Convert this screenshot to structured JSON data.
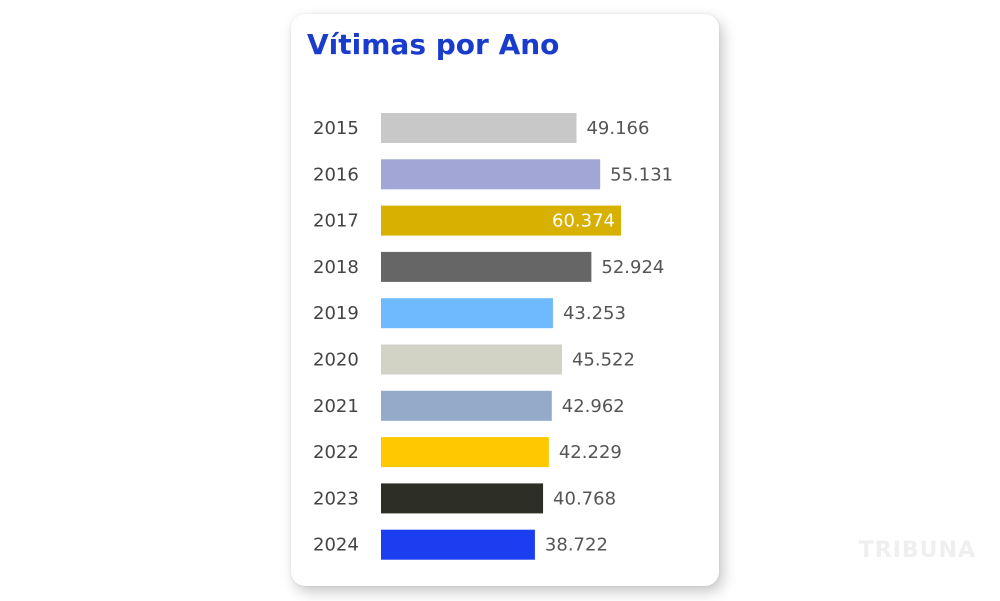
{
  "card": {
    "title": "Vítimas por Ano"
  },
  "watermark": "TRIBUNA",
  "chart_data": {
    "type": "bar",
    "orientation": "horizontal",
    "title": "Vítimas por Ano",
    "xlabel": "",
    "ylabel": "",
    "grid": false,
    "xlim": [
      0,
      60374
    ],
    "categories": [
      "2015",
      "2016",
      "2017",
      "2018",
      "2019",
      "2020",
      "2021",
      "2022",
      "2023",
      "2024"
    ],
    "values": [
      49166,
      55131,
      60374,
      52924,
      43253,
      45522,
      42962,
      42229,
      40768,
      38722
    ],
    "value_labels": [
      "49.166",
      "55.131",
      "60.374",
      "52.924",
      "43.253",
      "45.522",
      "42.962",
      "42.229",
      "40.768",
      "38.722"
    ],
    "colors": [
      "#c8c8c8",
      "#a2a6d6",
      "#d8b000",
      "#666666",
      "#6fbaff",
      "#d2d3c4",
      "#94aac9",
      "#ffc800",
      "#2d2f26",
      "#1a3ef0"
    ],
    "label_inside": [
      false,
      false,
      true,
      false,
      false,
      false,
      false,
      false,
      false,
      false
    ]
  }
}
